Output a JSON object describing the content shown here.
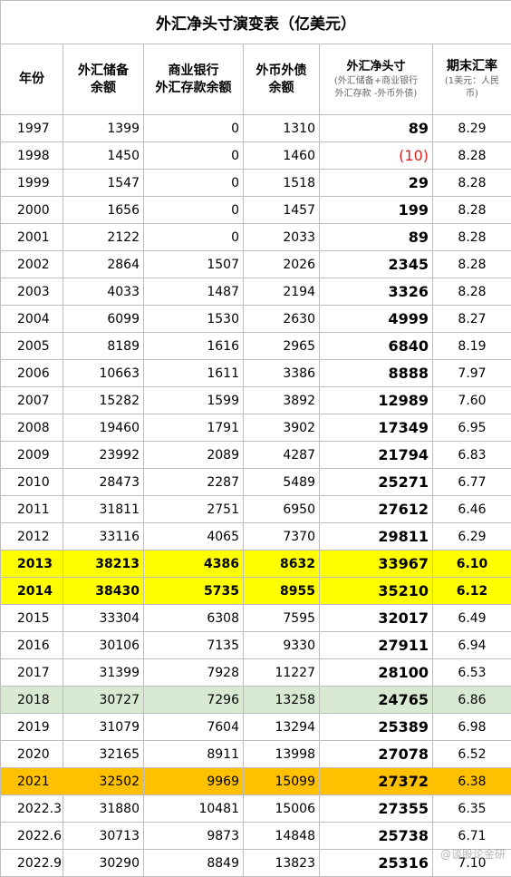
{
  "title": "外汇净头寸演变表（亿美元）",
  "headers": {
    "year": "年份",
    "reserves": [
      "外汇储备",
      "余额"
    ],
    "deposits": [
      "商业银行",
      "外汇存款余额"
    ],
    "debt": [
      "外币外债",
      "余额"
    ],
    "net": [
      "外汇净头寸",
      "(外汇储备+商业银行",
      "外汇存款 -外币外债)"
    ],
    "rate": [
      "期末汇率",
      "(1美元：人民",
      "币)"
    ]
  },
  "rows": [
    {
      "year": "1997",
      "reserves": "1399",
      "deposits": "0",
      "debt": "1310",
      "net": "89",
      "rate": "8.29"
    },
    {
      "year": "1998",
      "reserves": "1450",
      "deposits": "0",
      "debt": "1460",
      "net": "(10)",
      "rate": "8.28",
      "negative": true
    },
    {
      "year": "1999",
      "reserves": "1547",
      "deposits": "0",
      "debt": "1518",
      "net": "29",
      "rate": "8.28"
    },
    {
      "year": "2000",
      "reserves": "1656",
      "deposits": "0",
      "debt": "1457",
      "net": "199",
      "rate": "8.28"
    },
    {
      "year": "2001",
      "reserves": "2122",
      "deposits": "0",
      "debt": "2033",
      "net": "89",
      "rate": "8.28"
    },
    {
      "year": "2002",
      "reserves": "2864",
      "deposits": "1507",
      "debt": "2026",
      "net": "2345",
      "rate": "8.28"
    },
    {
      "year": "2003",
      "reserves": "4033",
      "deposits": "1487",
      "debt": "2194",
      "net": "3326",
      "rate": "8.28"
    },
    {
      "year": "2004",
      "reserves": "6099",
      "deposits": "1530",
      "debt": "2630",
      "net": "4999",
      "rate": "8.27"
    },
    {
      "year": "2005",
      "reserves": "8189",
      "deposits": "1616",
      "debt": "2965",
      "net": "6840",
      "rate": "8.19"
    },
    {
      "year": "2006",
      "reserves": "10663",
      "deposits": "1611",
      "debt": "3386",
      "net": "8888",
      "rate": "7.97"
    },
    {
      "year": "2007",
      "reserves": "15282",
      "deposits": "1599",
      "debt": "3892",
      "net": "12989",
      "rate": "7.60"
    },
    {
      "year": "2008",
      "reserves": "19460",
      "deposits": "1791",
      "debt": "3902",
      "net": "17349",
      "rate": "6.95"
    },
    {
      "year": "2009",
      "reserves": "23992",
      "deposits": "2089",
      "debt": "4287",
      "net": "21794",
      "rate": "6.83"
    },
    {
      "year": "2010",
      "reserves": "28473",
      "deposits": "2287",
      "debt": "5489",
      "net": "25271",
      "rate": "6.77"
    },
    {
      "year": "2011",
      "reserves": "31811",
      "deposits": "2751",
      "debt": "6950",
      "net": "27612",
      "rate": "6.46"
    },
    {
      "year": "2012",
      "reserves": "33116",
      "deposits": "4065",
      "debt": "7370",
      "net": "29811",
      "rate": "6.29"
    },
    {
      "year": "2013",
      "reserves": "38213",
      "deposits": "4386",
      "debt": "8632",
      "net": "33967",
      "rate": "6.10",
      "highlight": "yellow"
    },
    {
      "year": "2014",
      "reserves": "38430",
      "deposits": "5735",
      "debt": "8955",
      "net": "35210",
      "rate": "6.12",
      "highlight": "yellow"
    },
    {
      "year": "2015",
      "reserves": "33304",
      "deposits": "6308",
      "debt": "7595",
      "net": "32017",
      "rate": "6.49"
    },
    {
      "year": "2016",
      "reserves": "30106",
      "deposits": "7135",
      "debt": "9330",
      "net": "27911",
      "rate": "6.94"
    },
    {
      "year": "2017",
      "reserves": "31399",
      "deposits": "7928",
      "debt": "11227",
      "net": "28100",
      "rate": "6.53"
    },
    {
      "year": "2018",
      "reserves": "30727",
      "deposits": "7296",
      "debt": "13258",
      "net": "24765",
      "rate": "6.86",
      "highlight": "green"
    },
    {
      "year": "2019",
      "reserves": "31079",
      "deposits": "7604",
      "debt": "13294",
      "net": "25389",
      "rate": "6.98"
    },
    {
      "year": "2020",
      "reserves": "32165",
      "deposits": "8911",
      "debt": "13998",
      "net": "27078",
      "rate": "6.52"
    },
    {
      "year": "2021",
      "reserves": "32502",
      "deposits": "9969",
      "debt": "15099",
      "net": "27372",
      "rate": "6.38",
      "highlight": "orange"
    },
    {
      "year": "2022.3",
      "reserves": "31880",
      "deposits": "10481",
      "debt": "15006",
      "net": "27355",
      "rate": "6.35"
    },
    {
      "year": "2022.6",
      "reserves": "30713",
      "deposits": "9873",
      "debt": "14848",
      "net": "25738",
      "rate": "6.71"
    },
    {
      "year": "2022.9",
      "reserves": "30290",
      "deposits": "8849",
      "debt": "13823",
      "net": "25316",
      "rate": "7.10"
    }
  ],
  "watermark": "@谈股论金研",
  "colors": {
    "yellow": "#ffff00",
    "green": "#d9ead3",
    "orange": "#ffc000",
    "negative": "#e02020"
  }
}
